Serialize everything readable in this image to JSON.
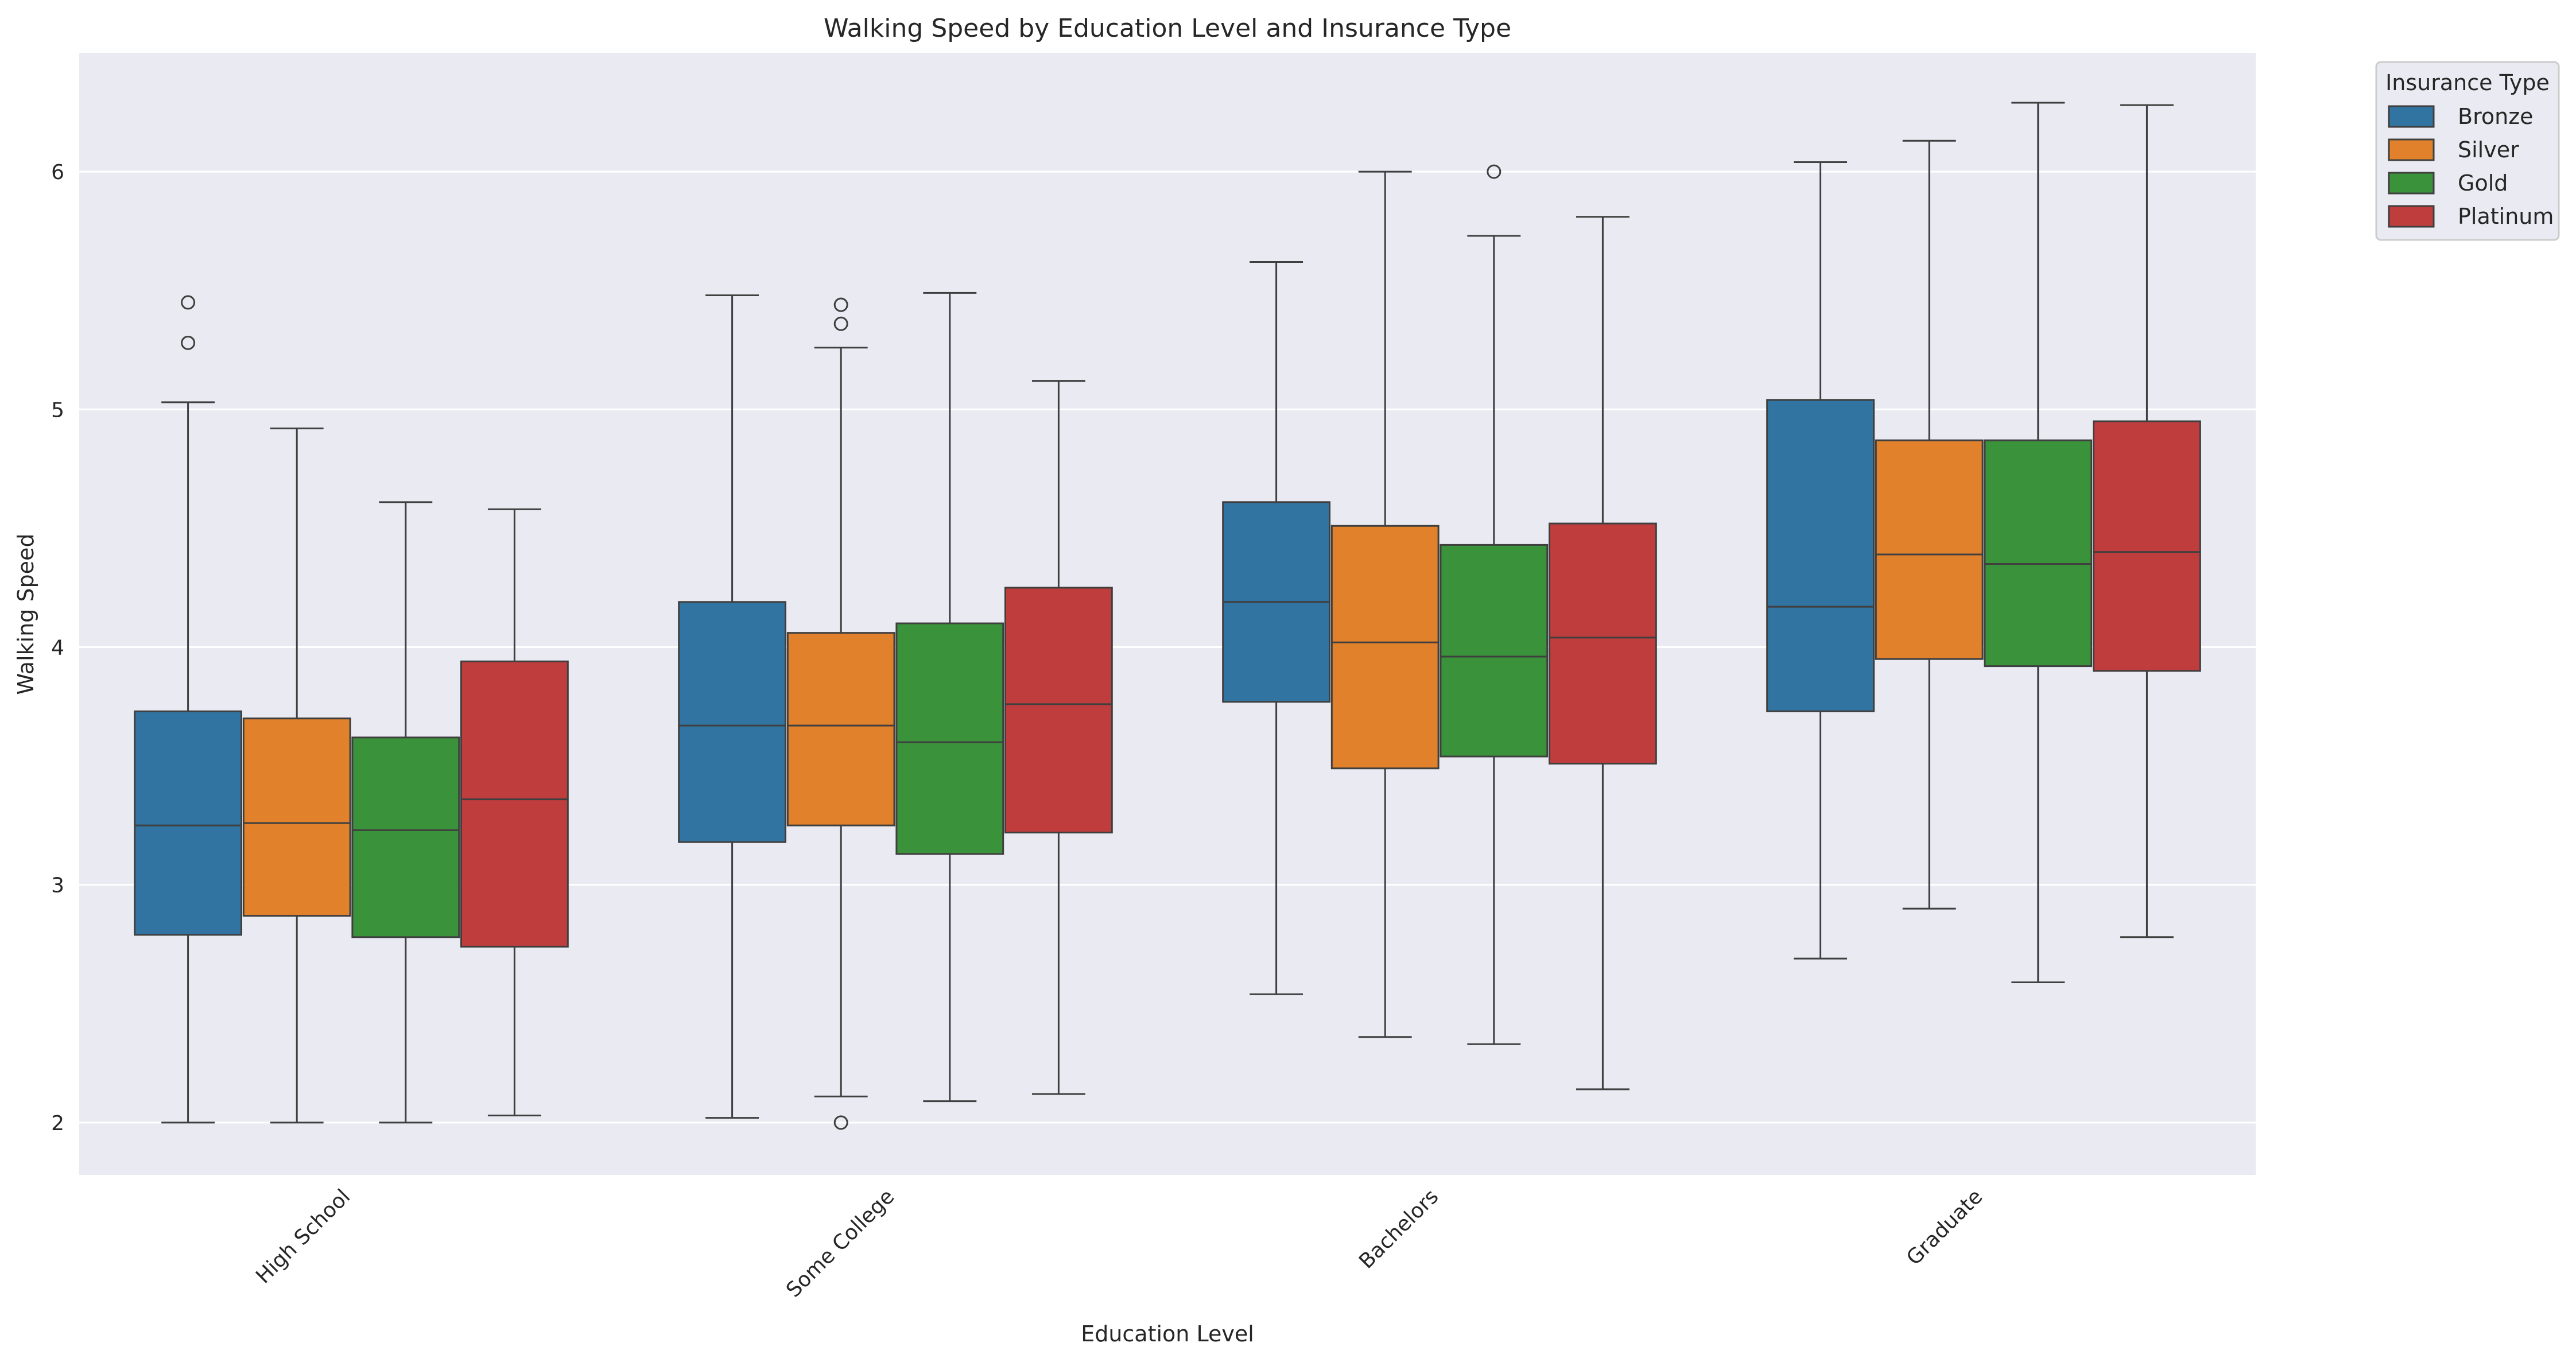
{
  "chart_data": {
    "type": "box",
    "title": "Walking Speed by Education Level and Insurance Type",
    "xlabel": "Education Level",
    "ylabel": "Walking Speed",
    "ylim": [
      1.78,
      6.5
    ],
    "yticks": [
      2,
      3,
      4,
      5,
      6
    ],
    "grid": true,
    "legend": {
      "title": "Insurance Type",
      "placement": "outside-top-right"
    },
    "categories": [
      "High School",
      "Some College",
      "Bachelors",
      "Graduate"
    ],
    "series": [
      {
        "name": "Bronze",
        "color": "#3274a1",
        "boxes": [
          {
            "whislo": 2.0,
            "q1": 2.79,
            "med": 3.25,
            "q3": 3.73,
            "whishi": 5.03,
            "fliers": [
              5.28,
              5.45
            ]
          },
          {
            "whislo": 2.02,
            "q1": 3.18,
            "med": 3.67,
            "q3": 4.19,
            "whishi": 5.48,
            "fliers": []
          },
          {
            "whislo": 2.54,
            "q1": 3.77,
            "med": 4.19,
            "q3": 4.61,
            "whishi": 5.62,
            "fliers": []
          },
          {
            "whislo": 2.69,
            "q1": 3.73,
            "med": 4.17,
            "q3": 5.04,
            "whishi": 6.04,
            "fliers": []
          }
        ]
      },
      {
        "name": "Silver",
        "color": "#e1812c",
        "boxes": [
          {
            "whislo": 2.0,
            "q1": 2.87,
            "med": 3.26,
            "q3": 3.7,
            "whishi": 4.92,
            "fliers": []
          },
          {
            "whislo": 2.11,
            "q1": 3.25,
            "med": 3.67,
            "q3": 4.06,
            "whishi": 5.26,
            "fliers": [
              2.0,
              5.36,
              5.44
            ]
          },
          {
            "whislo": 2.36,
            "q1": 3.49,
            "med": 4.02,
            "q3": 4.51,
            "whishi": 6.0,
            "fliers": []
          },
          {
            "whislo": 2.9,
            "q1": 3.95,
            "med": 4.39,
            "q3": 4.87,
            "whishi": 6.13,
            "fliers": []
          }
        ]
      },
      {
        "name": "Gold",
        "color": "#3a923a",
        "boxes": [
          {
            "whislo": 2.0,
            "q1": 2.78,
            "med": 3.23,
            "q3": 3.62,
            "whishi": 4.61,
            "fliers": []
          },
          {
            "whislo": 2.09,
            "q1": 3.13,
            "med": 3.6,
            "q3": 4.1,
            "whishi": 5.49,
            "fliers": []
          },
          {
            "whislo": 2.33,
            "q1": 3.54,
            "med": 3.96,
            "q3": 4.43,
            "whishi": 5.73,
            "fliers": [
              6.0
            ]
          },
          {
            "whislo": 2.59,
            "q1": 3.92,
            "med": 4.35,
            "q3": 4.87,
            "whishi": 6.29,
            "fliers": []
          }
        ]
      },
      {
        "name": "Platinum",
        "color": "#c03d3e",
        "boxes": [
          {
            "whislo": 2.03,
            "q1": 2.74,
            "med": 3.36,
            "q3": 3.94,
            "whishi": 4.58,
            "fliers": []
          },
          {
            "whislo": 2.12,
            "q1": 3.22,
            "med": 3.76,
            "q3": 4.25,
            "whishi": 5.12,
            "fliers": []
          },
          {
            "whislo": 2.14,
            "q1": 3.51,
            "med": 4.04,
            "q3": 4.52,
            "whishi": 5.81,
            "fliers": []
          },
          {
            "whislo": 2.78,
            "q1": 3.9,
            "med": 4.4,
            "q3": 4.95,
            "whishi": 6.28,
            "fliers": []
          }
        ]
      }
    ]
  }
}
